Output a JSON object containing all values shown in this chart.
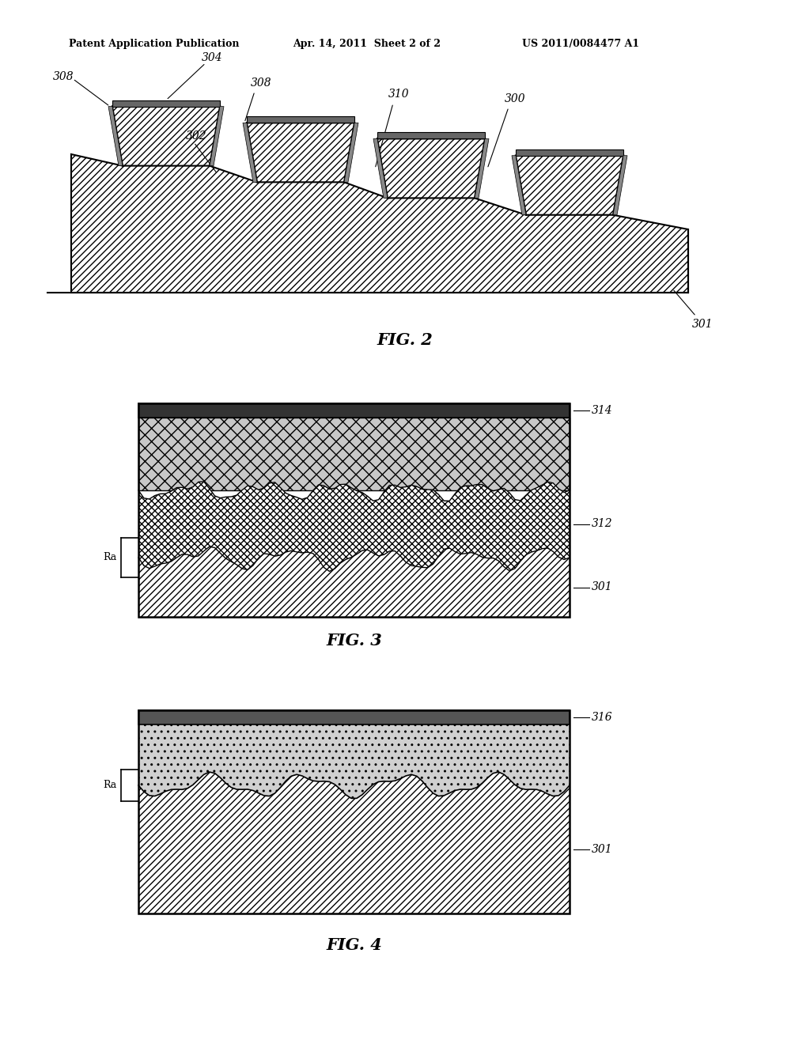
{
  "header_left": "Patent Application Publication",
  "header_center": "Apr. 14, 2011  Sheet 2 of 2",
  "header_right": "US 2011/0084477 A1",
  "fig2_label": "FIG. 2",
  "fig3_label": "FIG. 3",
  "fig4_label": "FIG. 4",
  "background_color": "#ffffff",
  "line_color": "#000000",
  "labels": {
    "308a": "308",
    "304": "304",
    "308b": "308",
    "310": "310",
    "300": "300",
    "302": "302",
    "301a": "301",
    "314": "314",
    "312": "312",
    "ra1": "Ra",
    "301b": "301",
    "316": "316",
    "ra2": "Ra",
    "301c": "301"
  }
}
